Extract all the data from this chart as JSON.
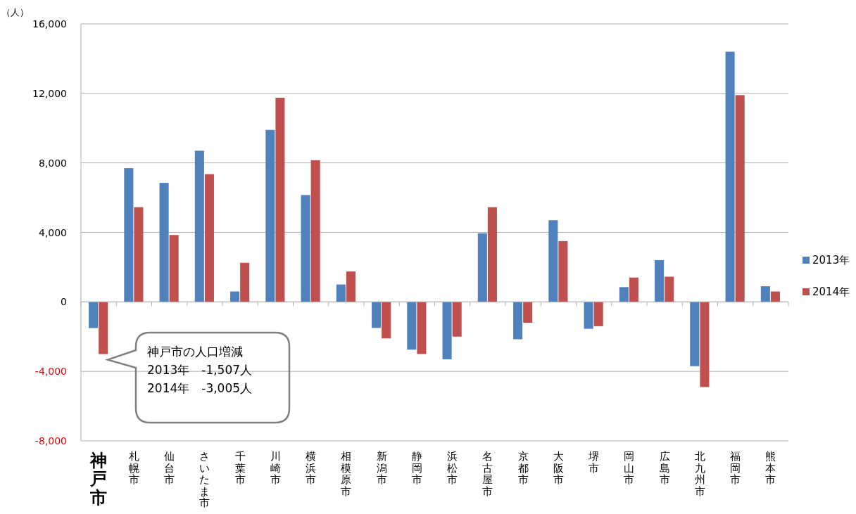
{
  "chart_data": {
    "type": "bar",
    "ylabel": "（人）",
    "categories": [
      "神戸市",
      "札幌市",
      "仙台市",
      "さいたま市",
      "千葉市",
      "川崎市",
      "横浜市",
      "相模原市",
      "新潟市",
      "静岡市",
      "浜松市",
      "名古屋市",
      "京都市",
      "大阪市",
      "堺市",
      "岡山市",
      "広島市",
      "北九州市",
      "福岡市",
      "熊本市"
    ],
    "series": [
      {
        "name": "2013年",
        "color": "#4f81bd",
        "values": [
          -1507,
          7700,
          6850,
          8700,
          600,
          9900,
          6150,
          1000,
          -1500,
          -2750,
          -3300,
          3950,
          -2150,
          4700,
          -1550,
          850,
          2400,
          -3700,
          14400,
          900
        ]
      },
      {
        "name": "2014年",
        "color": "#c0504d",
        "values": [
          -3005,
          5450,
          3850,
          7350,
          2250,
          11750,
          8150,
          1750,
          -2100,
          -3000,
          -2000,
          5450,
          -1200,
          3500,
          -1400,
          1400,
          1450,
          -4900,
          11900,
          600
        ]
      }
    ],
    "ylim": [
      -8000,
      16000
    ],
    "yticks": [
      {
        "value": -8000,
        "label": "-8,000"
      },
      {
        "value": -4000,
        "label": "-4,000"
      },
      {
        "value": 0,
        "label": "0"
      },
      {
        "value": 4000,
        "label": "4,000"
      },
      {
        "value": 8000,
        "label": "8,000"
      },
      {
        "value": 12000,
        "label": "12,000"
      },
      {
        "value": 16000,
        "label": "16,000"
      }
    ],
    "grid": "y",
    "legend": "right",
    "annotations": [
      "神戸市の人口増減\n2013年　-1,507人\n2014年　-3,005人"
    ]
  }
}
